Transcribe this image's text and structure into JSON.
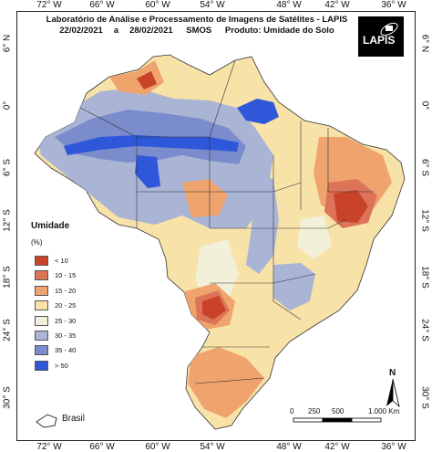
{
  "title": {
    "line1": "Laboratório de Análise e Processamento de Imagens de Satélites - LAPIS",
    "date_range_start": "22/02/2021",
    "date_range_sep": "a",
    "date_range_end": "28/02/2021",
    "sensor": "SMOS",
    "product": "Produto: Umidade do Solo"
  },
  "logo": {
    "text": "LAPIS"
  },
  "axes": {
    "longitude_ticks": [
      "72° W",
      "66° W",
      "60° W",
      "54° W",
      "48° W",
      "42° W",
      "36° W"
    ],
    "latitude_ticks": [
      "6° N",
      "0°",
      "6° S",
      "12° S",
      "18° S",
      "24° S",
      "30° S"
    ]
  },
  "legend": {
    "title": "Umidade",
    "unit": "(%)",
    "items": [
      {
        "label": "< 10",
        "color": "#c9432b"
      },
      {
        "label": "10 - 15",
        "color": "#dd7358"
      },
      {
        "label": "15 - 20",
        "color": "#efa46e"
      },
      {
        "label": "20 - 25",
        "color": "#f7e2a8"
      },
      {
        "label": "25 - 30",
        "color": "#f2f0d8"
      },
      {
        "label": "30 - 35",
        "color": "#aab5d6"
      },
      {
        "label": "35 - 40",
        "color": "#7a8ccc"
      },
      {
        "label": "> 50",
        "color": "#2f57d9"
      }
    ]
  },
  "boundary_legend": {
    "label": "Brasil"
  },
  "scale_bar": {
    "labels": [
      "0",
      "250",
      "500",
      "1.000 Km"
    ]
  },
  "north_arrow": {
    "label": "N"
  }
}
